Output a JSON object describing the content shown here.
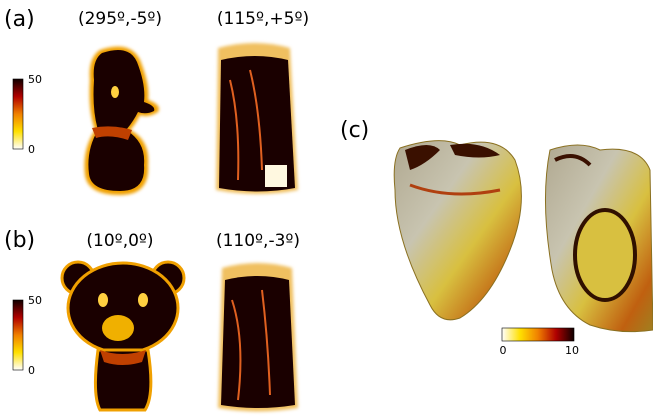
{
  "panels": [
    {
      "label": "(a)",
      "views": [
        "(295º,-5º)",
        "(115º,+5º)"
      ],
      "colorbar_ticks": [
        50,
        0
      ]
    },
    {
      "label": "(b)",
      "views": [
        "(10º,0º)",
        "(110º,-3º)"
      ],
      "colorbar_ticks": [
        50,
        0
      ]
    },
    {
      "label": "(c)",
      "colorbar_ticks": [
        0,
        10
      ]
    }
  ]
}
